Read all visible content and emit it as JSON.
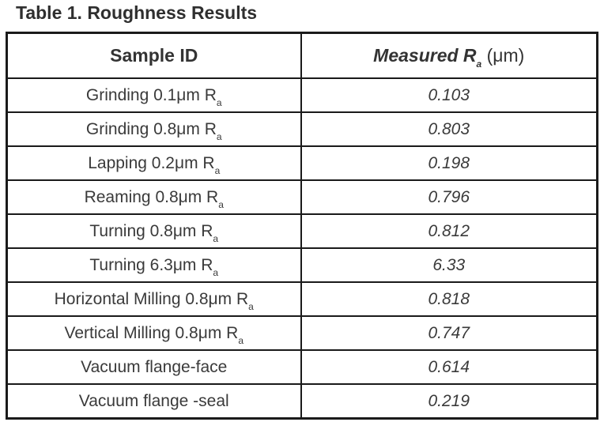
{
  "caption": "Table 1. Roughness Results",
  "header": {
    "sample_id": "Sample ID",
    "measured": "Measured R",
    "measured_sub": "a",
    "unit": "(μm)"
  },
  "rows": [
    {
      "sample": "Grinding 0.1μm R",
      "sub": "a",
      "value": "0.103"
    },
    {
      "sample": "Grinding 0.8μm R",
      "sub": "a",
      "value": "0.803"
    },
    {
      "sample": "Lapping 0.2μm R",
      "sub": "a",
      "value": "0.198"
    },
    {
      "sample": "Reaming 0.8μm R",
      "sub": "a",
      "value": "0.796"
    },
    {
      "sample": "Turning 0.8μm R",
      "sub": "a",
      "value": "0.812"
    },
    {
      "sample": "Turning 6.3μm R",
      "sub": "a",
      "value": "6.33"
    },
    {
      "sample": "Horizontal Milling 0.8μm R",
      "sub": "a",
      "value": "0.818"
    },
    {
      "sample": "Vertical Milling 0.8μm R",
      "sub": "a",
      "value": "0.747"
    },
    {
      "sample": "Vacuum flange-face",
      "sub": "",
      "value": "0.614"
    },
    {
      "sample": "Vacuum flange -seal",
      "sub": "",
      "value": "0.219"
    }
  ]
}
